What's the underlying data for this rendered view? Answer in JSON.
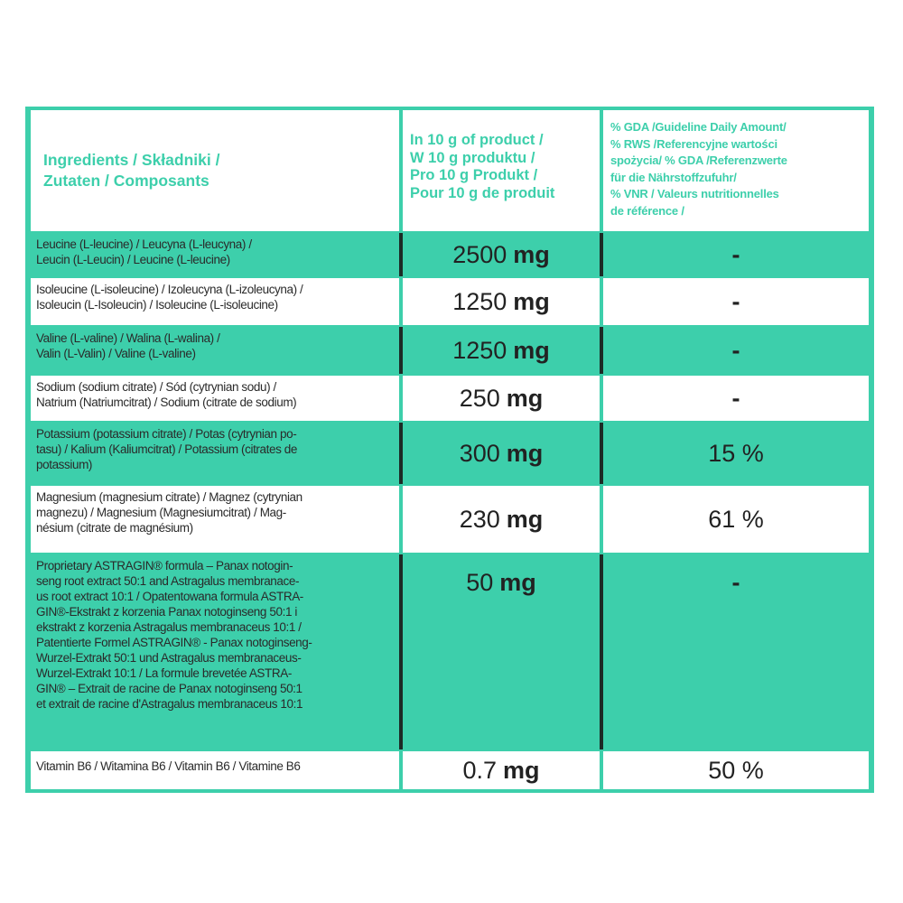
{
  "colors": {
    "accent": "#3dcfab",
    "divider": "#1c2b26"
  },
  "header": {
    "ingredients": "Ingredients / Składniki /\nZutaten / Composants",
    "amount": "In 10 g of product /\nW 10 g produktu /\nPro 10 g Produkt /\nPour 10 g de produit",
    "gda": "% GDA /Guideline Daily Amount/\n% RWS /Referencyjne wartości\nspożycia/ % GDA /Referenzwerte\nfür die Nährstoffzufuhr/\n% VNR / Valeurs nutritionnelles\nde référence /"
  },
  "rows": [
    {
      "ingredient": "Leucine (L-leucine) / Leucyna (L-leucyna) /\nLeucin (L-Leucin) / Leucine (L-leucine)",
      "amount": "2500",
      "unit": "mg",
      "gda": "-"
    },
    {
      "ingredient": "Isoleucine (L-isoleucine) / Izoleucyna (L-izoleucyna) /\nIsoleucin (L-Isoleucin) / Isoleucine (L-isoleucine)",
      "amount": "1250",
      "unit": "mg",
      "gda": "-"
    },
    {
      "ingredient": "Valine (L-valine) / Walina (L-walina) /\nValin (L-Valin) / Valine (L-valine)",
      "amount": "1250",
      "unit": "mg",
      "gda": "-"
    },
    {
      "ingredient": "Sodium (sodium citrate) / Sód (cytrynian sodu) /\nNatrium (Natriumcitrat) / Sodium (citrate de sodium)",
      "amount": "250",
      "unit": "mg",
      "gda": "-"
    },
    {
      "ingredient": "Potassium (potassium citrate) / Potas (cytrynian po-\ntasu) / Kalium (Kaliumcitrat) / Potassium (citrates de\npotassium)",
      "amount": "300",
      "unit": "mg",
      "gda": "15 %"
    },
    {
      "ingredient": "Magnesium (magnesium citrate) / Magnez (cytrynian\nmagnezu) / Magnesium (Magnesiumcitrat) / Mag-\nnésium (citrate de magnésium)",
      "amount": "230",
      "unit": "mg",
      "gda": "61 %"
    },
    {
      "ingredient": "Proprietary ASTRAGIN® formula – Panax notogin-\nseng root extract 50:1 and Astragalus membranace-\nus root extract 10:1 / Opatentowana formula ASTRA-\nGIN®-Ekstrakt z korzenia Panax notoginseng 50:1 i\nekstrakt z korzenia Astragalus membranaceus  10:1 /\nPatentierte Formel ASTRAGIN® - Panax notoginseng-\nWurzel-Extrakt 50:1 und Astragalus membranaceus-\nWurzel-Extrakt 10:1 / La formule brevetée ASTRA-\nGIN® – Extrait de racine de Panax notoginseng 50:1\net extrait de racine d'Astragalus membranaceus 10:1",
      "amount": "50",
      "unit": "mg",
      "gda": "-"
    },
    {
      "ingredient": "Vitamin B6 / Witamina B6 / Vitamin B6 / Vitamine B6",
      "amount": "0.7",
      "unit": "mg",
      "gda": "50 %"
    }
  ]
}
